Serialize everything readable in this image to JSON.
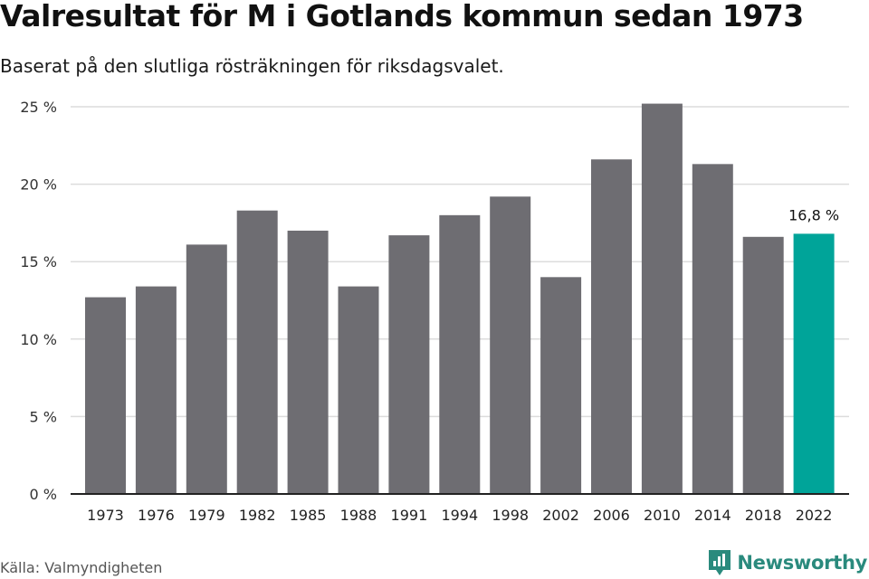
{
  "title": "Valresultat för M i Gotlands kommun sedan 1973",
  "subtitle": "Baserat på den slutliga rösträkningen för riksdagsvalet.",
  "source": "Källa: Valmyndigheten",
  "brand": {
    "name": "Newsworthy",
    "icon": "newsworthy-logo-icon"
  },
  "colors": {
    "bar": "#6e6d72",
    "highlight": "#00a499",
    "grid": "#dcdcdc",
    "axis": "#222222"
  },
  "chart_data": {
    "type": "bar",
    "categories": [
      "1973",
      "1976",
      "1979",
      "1982",
      "1985",
      "1988",
      "1991",
      "1994",
      "1998",
      "2002",
      "2006",
      "2010",
      "2014",
      "2018",
      "2022"
    ],
    "values": [
      12.7,
      13.4,
      16.1,
      18.3,
      17.0,
      13.4,
      16.7,
      18.0,
      19.2,
      14.0,
      21.6,
      25.2,
      21.3,
      16.6,
      16.8
    ],
    "ylim": [
      0,
      25
    ],
    "yticks": [
      0,
      5,
      10,
      15,
      20,
      25
    ],
    "ytick_labels": [
      "0 %",
      "5 %",
      "10 %",
      "15 %",
      "20 %",
      "25 %"
    ],
    "grid": true,
    "highlight_category": "2022",
    "annotation": {
      "category": "2022",
      "text": "16,8 %"
    }
  }
}
